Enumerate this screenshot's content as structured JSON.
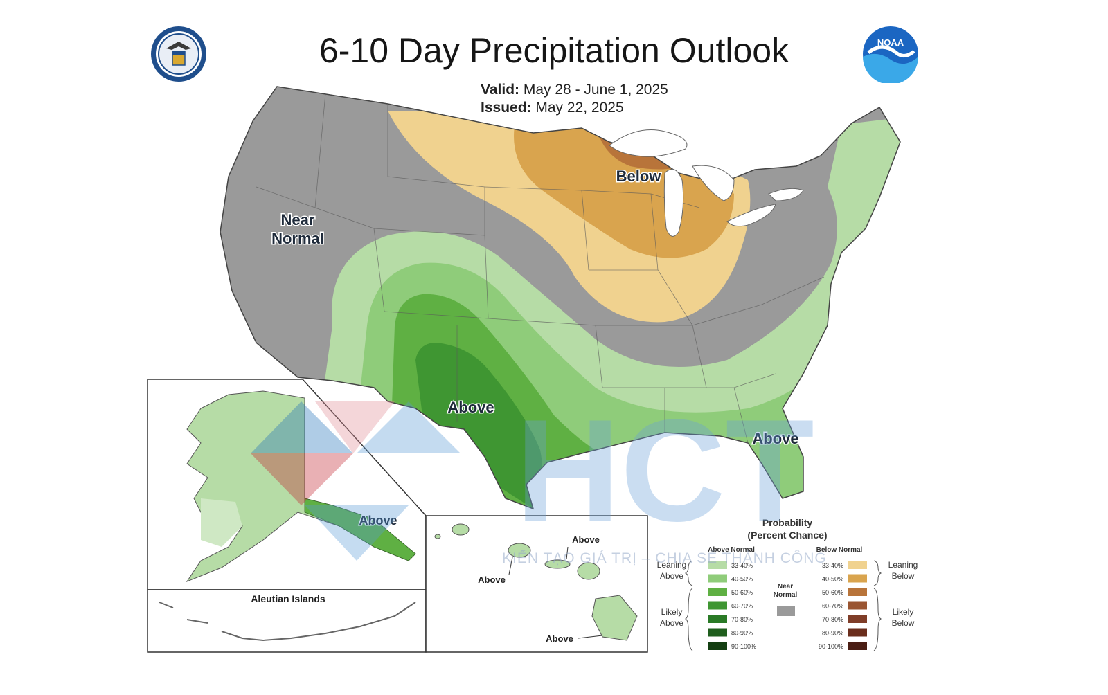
{
  "title": "6-10 Day Precipitation Outlook",
  "valid_label": "Valid:",
  "valid_value": "May 28 - June 1, 2025",
  "issued_label": "Issued:",
  "issued_value": "May 22, 2025",
  "logos": {
    "left": "doc-seal-icon",
    "right": "noaa-logo-icon",
    "right_text": "NOAA"
  },
  "map_labels": {
    "near_normal_1": "Near",
    "near_normal_2": "Normal",
    "below": "Below",
    "above_south": "Above",
    "above_florida": "Above",
    "above_alaska": "Above",
    "aleutian": "Aleutian Islands",
    "above_hawaii_1": "Above",
    "above_hawaii_2": "Above",
    "above_hawaii_3": "Above"
  },
  "legend": {
    "title_1": "Probability",
    "title_2": "(Percent Chance)",
    "above_header": "Above Normal",
    "below_header": "Below Normal",
    "near_normal_1": "Near",
    "near_normal_2": "Normal",
    "leaning_above_1": "Leaning",
    "leaning_above_2": "Above",
    "likely_above_1": "Likely",
    "likely_above_2": "Above",
    "leaning_below_1": "Leaning",
    "leaning_below_2": "Below",
    "likely_below_1": "Likely",
    "likely_below_2": "Below",
    "ranges": [
      "33-40%",
      "40-50%",
      "50-60%",
      "60-70%",
      "70-80%",
      "80-90%",
      "90-100%"
    ],
    "above_colors": [
      "#b6dca6",
      "#8fcc7a",
      "#5fb043",
      "#3f9632",
      "#2a7a26",
      "#1f5e1d",
      "#143f12"
    ],
    "below_colors": [
      "#f0d28f",
      "#d9a44e",
      "#b8743a",
      "#9a5531",
      "#7f3d28",
      "#6a2d1c",
      "#4a1e14"
    ],
    "near_color": "#9a9a9a"
  },
  "colors": {
    "near_normal": "#9a9a9a",
    "leaning_below": "#f0d28f",
    "below_40": "#d9a44e",
    "below_50": "#b8743a",
    "leaning_above": "#b6dca6",
    "above_40": "#8fcc7a",
    "above_50": "#5fb043",
    "above_60": "#3f9632"
  },
  "watermark": {
    "text": "KIẾN TẠO GIÁ TRỊ – CHIA SẺ THÀNH CÔNG",
    "mark": "HCT"
  }
}
